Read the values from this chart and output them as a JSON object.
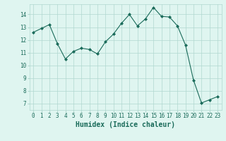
{
  "x": [
    0,
    1,
    2,
    3,
    4,
    5,
    6,
    7,
    8,
    9,
    10,
    11,
    12,
    13,
    14,
    15,
    16,
    17,
    18,
    19,
    20,
    21,
    22,
    23
  ],
  "y": [
    12.6,
    12.9,
    13.2,
    11.7,
    10.5,
    11.1,
    11.35,
    11.25,
    10.9,
    11.85,
    12.45,
    13.3,
    14.0,
    13.1,
    13.65,
    14.55,
    13.85,
    13.8,
    13.1,
    11.6,
    8.85,
    7.05,
    7.3,
    7.55
  ],
  "line_color": "#1a6b5a",
  "marker": "D",
  "marker_size": 2.0,
  "bg_color": "#dff5f0",
  "grid_color": "#b0d8cf",
  "xlabel": "Humidex (Indice chaleur)",
  "ylim": [
    6.5,
    14.8
  ],
  "xlim": [
    -0.5,
    23.5
  ],
  "yticks": [
    7,
    8,
    9,
    10,
    11,
    12,
    13,
    14
  ],
  "xticks": [
    0,
    1,
    2,
    3,
    4,
    5,
    6,
    7,
    8,
    9,
    10,
    11,
    12,
    13,
    14,
    15,
    16,
    17,
    18,
    19,
    20,
    21,
    22,
    23
  ],
  "tick_label_fontsize": 5.5,
  "xlabel_fontsize": 7.0,
  "text_color": "#1a6b5a"
}
